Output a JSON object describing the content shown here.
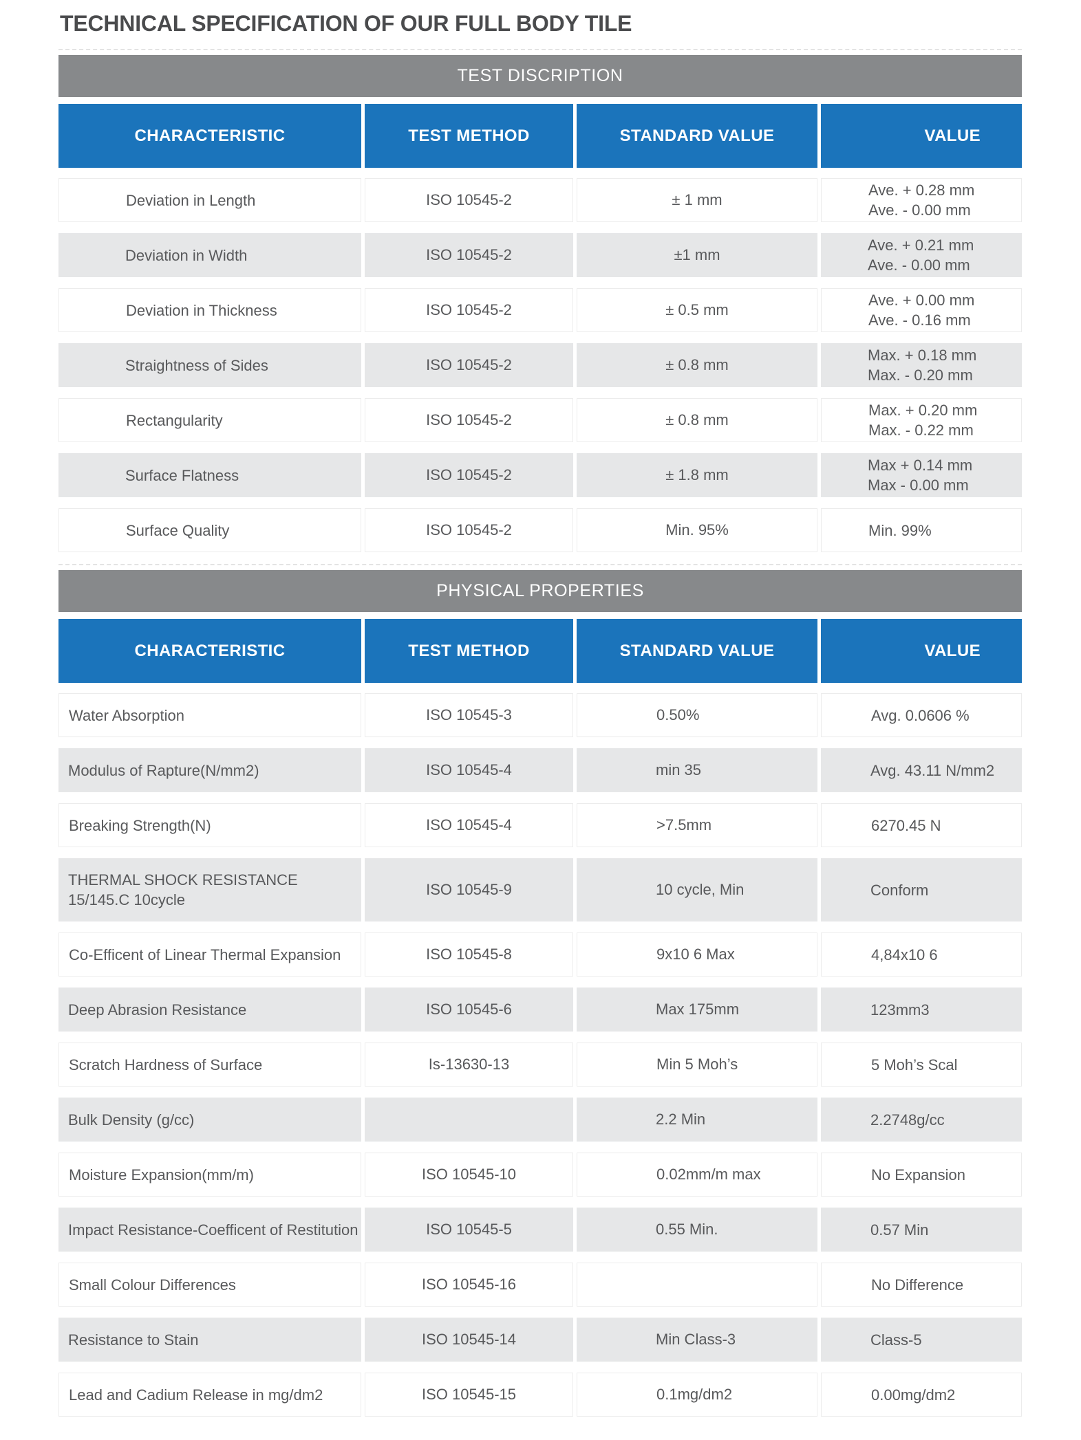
{
  "page": {
    "title": "TECHNICAL SPECIFICATION OF OUR FULL BODY TILE"
  },
  "colors": {
    "header_blue": "#1b74bb",
    "banner_gray": "#87898b",
    "row_gray": "#e6e7e8",
    "text_gray": "#58595b"
  },
  "columns": [
    "CHARACTERISTIC",
    "TEST METHOD",
    "STANDARD VALUE",
    "VALUE"
  ],
  "sections": [
    {
      "id": "test-description",
      "style": "spec",
      "banner": "TEST DISCRIPTION",
      "rows": [
        {
          "characteristic": [
            "Deviation in Length"
          ],
          "test_method": "ISO 10545-2",
          "standard_value": "± 1 mm",
          "value": [
            "Ave. + 0.28 mm",
            "Ave. - 0.00 mm"
          ]
        },
        {
          "characteristic": [
            "Deviation in Width"
          ],
          "test_method": "ISO 10545-2",
          "standard_value": "±1 mm",
          "value": [
            "Ave. + 0.21 mm",
            "Ave. - 0.00 mm"
          ]
        },
        {
          "characteristic": [
            "Deviation in Thickness"
          ],
          "test_method": "ISO 10545-2",
          "standard_value": "± 0.5 mm",
          "value": [
            "Ave. + 0.00 mm",
            "Ave. - 0.16 mm"
          ]
        },
        {
          "characteristic": [
            "Straightness of Sides"
          ],
          "test_method": "ISO 10545-2",
          "standard_value": "± 0.8 mm",
          "value": [
            "Max. + 0.18 mm",
            "Max. - 0.20 mm"
          ]
        },
        {
          "characteristic": [
            "Rectangularity"
          ],
          "test_method": "ISO 10545-2",
          "standard_value": "± 0.8 mm",
          "value": [
            "Max. + 0.20 mm",
            "Max. - 0.22 mm"
          ]
        },
        {
          "characteristic": [
            "Surface Flatness"
          ],
          "test_method": "ISO 10545-2",
          "standard_value": "± 1.8 mm",
          "value": [
            "Max +  0.14 mm",
            "Max -  0.00 mm"
          ]
        },
        {
          "characteristic": [
            "Surface Quality"
          ],
          "test_method": "ISO 10545-2",
          "standard_value": "Min. 95%",
          "value": [
            "Min. 99%"
          ]
        }
      ]
    },
    {
      "id": "physical-properties",
      "style": "physical",
      "banner": "PHYSICAL PROPERTIES",
      "rows": [
        {
          "characteristic": [
            "Water Absorption"
          ],
          "test_method": "ISO 10545-3",
          "standard_value": "0.50%",
          "value": [
            "Avg. 0.0606 %"
          ]
        },
        {
          "characteristic": [
            "Modulus of Rapture(N/mm2)"
          ],
          "test_method": "ISO 10545-4",
          "standard_value": "min 35",
          "value": [
            "Avg. 43.11 N/mm2"
          ]
        },
        {
          "characteristic": [
            "Breaking Strength(N)"
          ],
          "test_method": "ISO 10545-4",
          "standard_value": ">7.5mm",
          "value": [
            "6270.45 N"
          ]
        },
        {
          "characteristic": [
            "THERMAL SHOCK RESISTANCE",
            "15/145.C 10cycle"
          ],
          "test_method": "ISO 10545-9",
          "standard_value": "10 cycle, Min",
          "value": [
            "Conform"
          ]
        },
        {
          "characteristic": [
            "Co-Efficent of Linear Thermal Expansion"
          ],
          "test_method": "ISO 10545-8",
          "standard_value": "9x10 6 Max",
          "value": [
            "4,84x10 6"
          ]
        },
        {
          "characteristic": [
            "Deep Abrasion Resistance"
          ],
          "test_method": "ISO 10545-6",
          "standard_value": "Max 175mm",
          "value": [
            "123mm3"
          ]
        },
        {
          "characteristic": [
            "Scratch Hardness of Surface"
          ],
          "test_method": "Is-13630-13",
          "standard_value": "Min 5 Moh’s",
          "value": [
            "5 Moh’s Scal"
          ]
        },
        {
          "characteristic": [
            "Bulk Density (g/cc)"
          ],
          "test_method": "",
          "standard_value": "2.2 Min",
          "value": [
            "2.2748g/cc"
          ]
        },
        {
          "characteristic": [
            "Moisture Expansion(mm/m)"
          ],
          "test_method": "ISO 10545-10",
          "standard_value": "0.02mm/m max",
          "value": [
            "No Expansion"
          ]
        },
        {
          "characteristic": [
            "Impact Resistance-Coefficent of Restitution"
          ],
          "test_method": "ISO 10545-5",
          "standard_value": "0.55 Min.",
          "value": [
            "0.57 Min"
          ]
        },
        {
          "characteristic": [
            "Small Colour Differences"
          ],
          "test_method": "ISO 10545-16",
          "standard_value": "",
          "value": [
            "No Difference"
          ]
        },
        {
          "characteristic": [
            "Resistance to Stain"
          ],
          "test_method": "ISO 10545-14",
          "standard_value": "Min Class-3",
          "value": [
            "Class-5"
          ]
        },
        {
          "characteristic": [
            "Lead and Cadium Release in mg/dm2"
          ],
          "test_method": "ISO 10545-15",
          "standard_value": "0.1mg/dm2",
          "value": [
            "0.00mg/dm2"
          ]
        }
      ]
    }
  ]
}
